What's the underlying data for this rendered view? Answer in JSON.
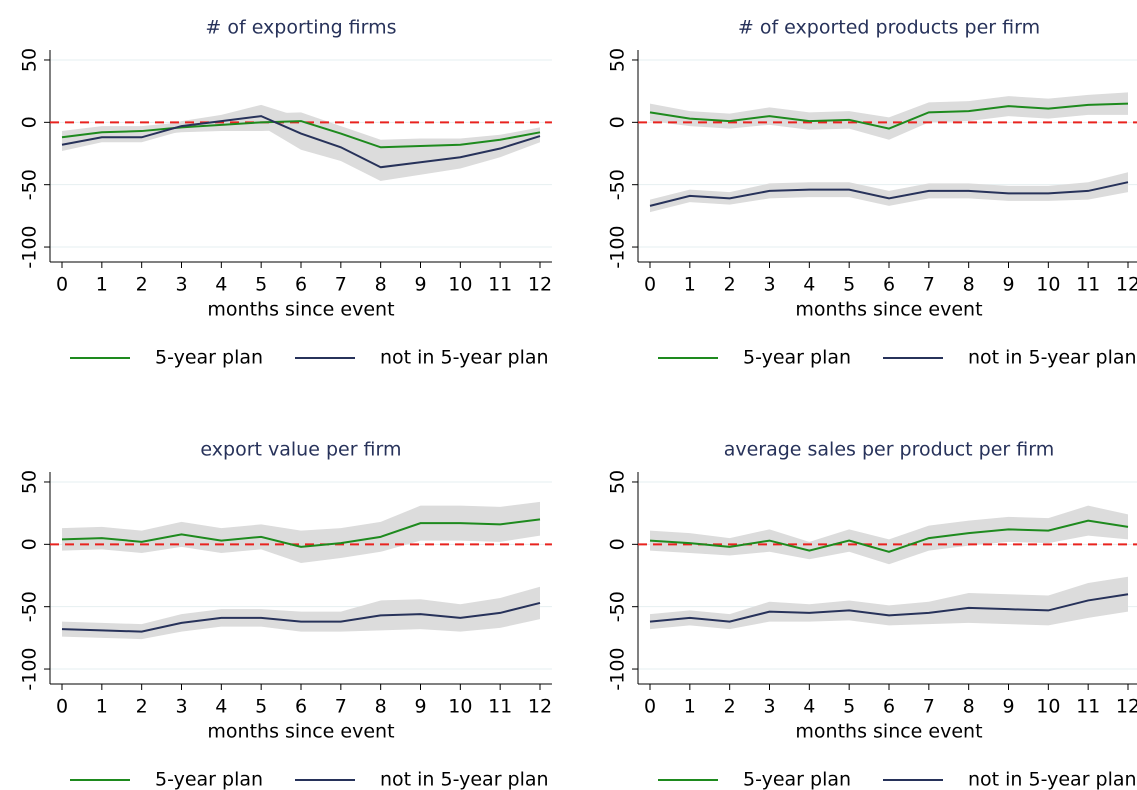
{
  "chart_data": [
    {
      "type": "line",
      "title": "# of exporting firms",
      "xlabel": "months since event",
      "x": [
        0,
        1,
        2,
        3,
        4,
        5,
        6,
        7,
        8,
        9,
        10,
        11,
        12
      ],
      "xlim": [
        -0.3,
        12.3
      ],
      "xticks": [
        0,
        1,
        2,
        3,
        4,
        5,
        6,
        7,
        8,
        9,
        10,
        11,
        12
      ],
      "ylim": [
        -112,
        58
      ],
      "yticks": [
        50,
        0,
        -50,
        -100
      ],
      "grid": true,
      "hline": 0,
      "series": [
        {
          "name": "5-year plan",
          "color": "#1e8a1e",
          "values": [
            -12,
            -8,
            -7,
            -4,
            -2,
            0,
            1,
            -9,
            -20,
            -19,
            -18,
            -14,
            -8
          ],
          "ci_low": [
            -17,
            -13,
            -11,
            -8,
            -7,
            -7,
            -6,
            -15,
            -26,
            -25,
            -23,
            -18,
            -12
          ],
          "ci_high": [
            -7,
            -3,
            -3,
            0,
            3,
            7,
            8,
            -3,
            -14,
            -13,
            -13,
            -10,
            -4
          ]
        },
        {
          "name": "not in 5-year plan",
          "color": "#27325a",
          "values": [
            -18,
            -12,
            -12,
            -3,
            1,
            5,
            -9,
            -20,
            -36,
            -32,
            -28,
            -21,
            -11
          ],
          "ci_low": [
            -23,
            -16,
            -16,
            -7,
            -4,
            -3,
            -22,
            -31,
            -47,
            -42,
            -37,
            -28,
            -16
          ],
          "ci_high": [
            -13,
            -8,
            -8,
            1,
            6,
            14,
            4,
            -9,
            -25,
            -22,
            -19,
            -14,
            -6
          ]
        }
      ]
    },
    {
      "type": "line",
      "title": "# of exported products per firm",
      "xlabel": "months since event",
      "x": [
        0,
        1,
        2,
        3,
        4,
        5,
        6,
        7,
        8,
        9,
        10,
        11,
        12
      ],
      "xlim": [
        -0.3,
        12.3
      ],
      "xticks": [
        0,
        1,
        2,
        3,
        4,
        5,
        6,
        7,
        8,
        9,
        10,
        11,
        12
      ],
      "ylim": [
        -112,
        58
      ],
      "yticks": [
        50,
        0,
        -50,
        -100
      ],
      "grid": true,
      "hline": 0,
      "series": [
        {
          "name": "5-year plan",
          "color": "#1e8a1e",
          "values": [
            8,
            3,
            1,
            5,
            1,
            2,
            -5,
            8,
            9,
            13,
            11,
            14,
            15
          ],
          "ci_low": [
            1,
            -3,
            -5,
            -2,
            -6,
            -5,
            -14,
            0,
            1,
            5,
            3,
            6,
            6
          ],
          "ci_high": [
            15,
            9,
            7,
            12,
            8,
            9,
            4,
            16,
            17,
            21,
            19,
            22,
            24
          ]
        },
        {
          "name": "not in 5-year plan",
          "color": "#27325a",
          "values": [
            -67,
            -59,
            -61,
            -55,
            -54,
            -54,
            -61,
            -55,
            -55,
            -57,
            -57,
            -55,
            -48
          ],
          "ci_low": [
            -72,
            -64,
            -66,
            -61,
            -60,
            -60,
            -67,
            -61,
            -61,
            -63,
            -63,
            -62,
            -56
          ],
          "ci_high": [
            -62,
            -54,
            -56,
            -49,
            -48,
            -48,
            -55,
            -49,
            -49,
            -51,
            -51,
            -48,
            -40
          ]
        }
      ]
    },
    {
      "type": "line",
      "title": "export value per firm",
      "xlabel": "months since event",
      "x": [
        0,
        1,
        2,
        3,
        4,
        5,
        6,
        7,
        8,
        9,
        10,
        11,
        12
      ],
      "xlim": [
        -0.3,
        12.3
      ],
      "xticks": [
        0,
        1,
        2,
        3,
        4,
        5,
        6,
        7,
        8,
        9,
        10,
        11,
        12
      ],
      "ylim": [
        -112,
        58
      ],
      "yticks": [
        50,
        0,
        -50,
        -100
      ],
      "grid": true,
      "hline": 0,
      "series": [
        {
          "name": "5-year plan",
          "color": "#1e8a1e",
          "values": [
            4,
            5,
            2,
            8,
            3,
            6,
            -2,
            1,
            6,
            17,
            17,
            16,
            20
          ],
          "ci_low": [
            -5,
            -4,
            -7,
            -2,
            -7,
            -4,
            -15,
            -11,
            -6,
            3,
            3,
            2,
            7
          ],
          "ci_high": [
            13,
            14,
            11,
            18,
            13,
            16,
            11,
            13,
            18,
            31,
            31,
            30,
            34
          ]
        },
        {
          "name": "not in 5-year plan",
          "color": "#27325a",
          "values": [
            -68,
            -69,
            -70,
            -63,
            -59,
            -59,
            -62,
            -62,
            -57,
            -56,
            -59,
            -55,
            -47
          ],
          "ci_low": [
            -74,
            -75,
            -76,
            -70,
            -66,
            -66,
            -70,
            -70,
            -69,
            -68,
            -70,
            -67,
            -60
          ],
          "ci_high": [
            -62,
            -63,
            -64,
            -56,
            -52,
            -52,
            -54,
            -54,
            -45,
            -44,
            -48,
            -43,
            -34
          ]
        }
      ]
    },
    {
      "type": "line",
      "title": "average sales per product per firm",
      "xlabel": "months since event",
      "x": [
        0,
        1,
        2,
        3,
        4,
        5,
        6,
        7,
        8,
        9,
        10,
        11,
        12
      ],
      "xlim": [
        -0.3,
        12.3
      ],
      "xticks": [
        0,
        1,
        2,
        3,
        4,
        5,
        6,
        7,
        8,
        9,
        10,
        11,
        12
      ],
      "ylim": [
        -112,
        58
      ],
      "yticks": [
        50,
        0,
        -50,
        -100
      ],
      "grid": true,
      "hline": 0,
      "series": [
        {
          "name": "5-year plan",
          "color": "#1e8a1e",
          "values": [
            3,
            1,
            -2,
            3,
            -5,
            3,
            -6,
            5,
            9,
            12,
            11,
            19,
            14
          ],
          "ci_low": [
            -5,
            -7,
            -9,
            -6,
            -12,
            -6,
            -16,
            -5,
            -1,
            2,
            1,
            7,
            4
          ],
          "ci_high": [
            11,
            9,
            5,
            12,
            2,
            12,
            4,
            15,
            19,
            22,
            21,
            31,
            24
          ]
        },
        {
          "name": "not in 5-year plan",
          "color": "#27325a",
          "values": [
            -62,
            -59,
            -62,
            -54,
            -55,
            -53,
            -57,
            -55,
            -51,
            -52,
            -53,
            -45,
            -40
          ],
          "ci_low": [
            -68,
            -65,
            -68,
            -62,
            -62,
            -61,
            -65,
            -64,
            -63,
            -64,
            -65,
            -59,
            -54
          ],
          "ci_high": [
            -56,
            -53,
            -56,
            -46,
            -48,
            -45,
            -49,
            -46,
            -39,
            -40,
            -41,
            -31,
            -26
          ]
        }
      ]
    }
  ]
}
